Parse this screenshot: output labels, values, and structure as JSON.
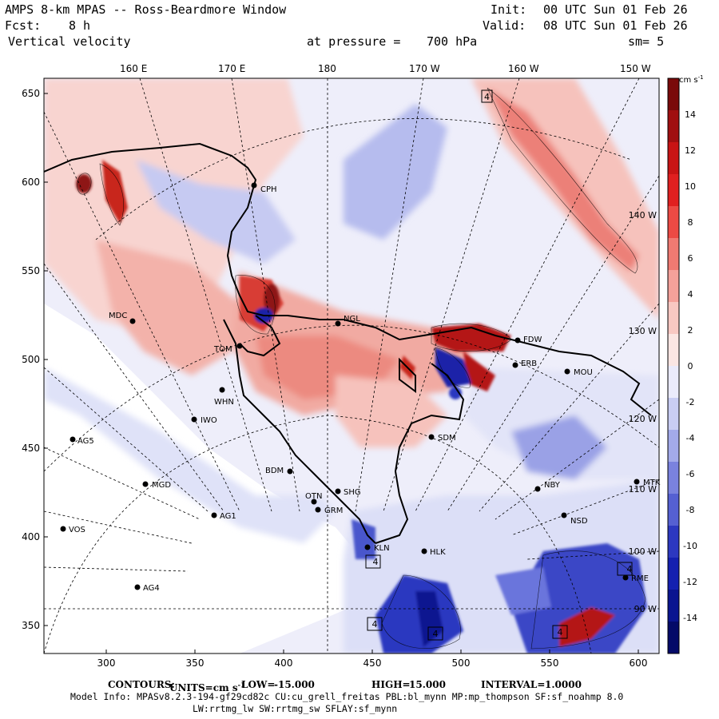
{
  "header": {
    "title": "AMPS 8-km MPAS -- Ross-Beardmore Window",
    "init_label": "Init:",
    "init_value": "00 UTC Sun 01 Feb 26",
    "fcst_label": "Fcst:",
    "fcst_value": "8 h",
    "valid_label": "Valid:",
    "valid_value": "08 UTC Sun 01 Feb 26",
    "field": "Vertical velocity",
    "pressure_label": "at pressure =",
    "pressure_value": "700 hPa",
    "smooth": "sm= 5"
  },
  "map": {
    "top_longitude_labels": [
      "160 E",
      "170 E",
      "180",
      "170 W",
      "160 W",
      "150 W"
    ],
    "x_ticks": [
      "300",
      "350",
      "400",
      "450",
      "500",
      "550",
      "600"
    ],
    "y_ticks": [
      "650",
      "600",
      "550",
      "500",
      "450",
      "400",
      "350"
    ],
    "inner_meridian_labels": [
      "140 W",
      "130 W",
      "120 W",
      "110 W",
      "100 W",
      "90 W"
    ],
    "stations": [
      {
        "name": "CPH"
      },
      {
        "name": "MDC"
      },
      {
        "name": "NGL"
      },
      {
        "name": "TOM"
      },
      {
        "name": "WHN"
      },
      {
        "name": "IWO"
      },
      {
        "name": "AG5"
      },
      {
        "name": "BDM"
      },
      {
        "name": "MGD"
      },
      {
        "name": "SHG"
      },
      {
        "name": "OTN"
      },
      {
        "name": "GRM"
      },
      {
        "name": "AG1"
      },
      {
        "name": "VOS"
      },
      {
        "name": "KLN"
      },
      {
        "name": "HLK"
      },
      {
        "name": "AG4"
      },
      {
        "name": "SDM"
      },
      {
        "name": "NBY"
      },
      {
        "name": "MTK"
      },
      {
        "name": "NSD"
      },
      {
        "name": "MOU"
      },
      {
        "name": "ERB"
      },
      {
        "name": "FDW"
      },
      {
        "name": "RME"
      }
    ],
    "markers": [
      "4",
      "4",
      "4",
      "4",
      "4",
      "4"
    ]
  },
  "colorbar": {
    "units": "cm s",
    "units_exp": "-1",
    "labels": [
      "14",
      "12",
      "10",
      "8",
      "6",
      "4",
      "2",
      "0",
      "-2",
      "-4",
      "-6",
      "-8",
      "-10",
      "-12",
      "-14"
    ],
    "colors_top_to_bottom": [
      "#7a0a0a",
      "#a00f10",
      "#c81414",
      "#e02020",
      "#ec4a44",
      "#f07a72",
      "#f4a19a",
      "#f8c8c2",
      "#fbe6e3",
      "#ebebfb",
      "#c9cdf3",
      "#a3aaea",
      "#7a82de",
      "#5560d2",
      "#2c38c0",
      "#1420b0",
      "#0a1490",
      "#040a68"
    ]
  },
  "footer": {
    "contours_label": "CONTOURS:",
    "units_label": "UNITS=cm s",
    "units_exp": "-1",
    "low_label": "LOW=",
    "low_value": "-15.000",
    "high_label": "HIGH=",
    "high_value": "15.000",
    "interval_label": "INTERVAL=",
    "interval_value": "1.0000",
    "model_info_1": "Model Info: MPASv8.2.3-194-gf29cd82c CU:cu_grell_freitas PBL:bl_mynn MP:mp_thompson SF:sf_noahmp 8.0",
    "model_info_2": "LW:rrtmg_lw SW:rrtmg_sw SFLAY:sf_mynn"
  },
  "colors": {
    "red_dark": "#b41414",
    "red_mid": "#e8625a",
    "red_light": "#f6c4be",
    "blue_light": "#d4d8f6",
    "blue_mid": "#6a74dc",
    "blue_dark": "#1a22a8"
  }
}
